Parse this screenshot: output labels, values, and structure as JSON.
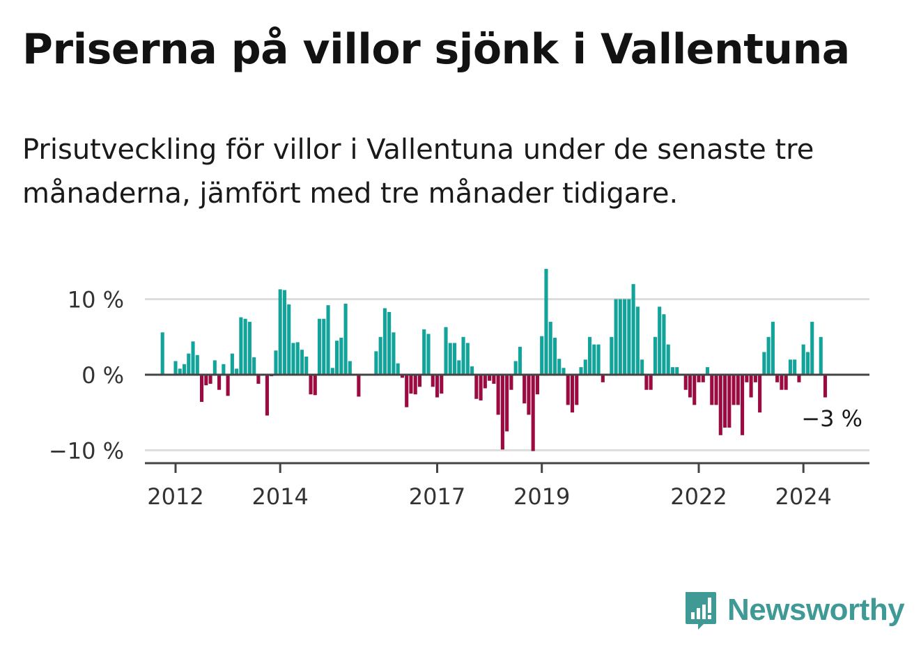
{
  "title": "Priserna på villor sjönk i Vallentuna",
  "subtitle": "Prisutveckling för villor i Vallentuna under de senaste tre månaderna, jämfört med tre månader tidigare.",
  "brand": {
    "name": "Newsworthy",
    "icon": "newsworthy-logo-icon"
  },
  "colors": {
    "positive": "#12a39a",
    "negative": "#9b0a40",
    "axis": "#444444",
    "grid": "#dddddd"
  },
  "chart_data": {
    "type": "bar",
    "title": "Priserna på villor sjönk i Vallentuna",
    "xlabel": "",
    "ylabel": "",
    "ylim": [
      -12,
      15
    ],
    "x_start": 2011.75,
    "x_step": 0.0833333,
    "y_ticks": [
      {
        "value": 10,
        "label": "10 %"
      },
      {
        "value": 0,
        "label": "0 %"
      },
      {
        "value": -10,
        "label": "−10 %"
      }
    ],
    "x_ticks": [
      {
        "value": 2012,
        "label": "2012"
      },
      {
        "value": 2014,
        "label": "2014"
      },
      {
        "value": 2017,
        "label": "2017"
      },
      {
        "value": 2019,
        "label": "2019"
      },
      {
        "value": 2022,
        "label": "2022"
      },
      {
        "value": 2024,
        "label": "2024"
      }
    ],
    "last_value_label": "−3 %",
    "values": [
      5.6,
      null,
      null,
      1.8,
      0.8,
      1.4,
      2.8,
      4.4,
      2.6,
      -3.6,
      -1.4,
      -1.2,
      1.9,
      -2.0,
      1.4,
      -2.8,
      2.8,
      0.8,
      7.6,
      7.4,
      7.0,
      2.3,
      -1.2,
      null,
      -5.4,
      -0.2,
      3.2,
      11.3,
      11.2,
      9.3,
      4.2,
      4.3,
      3.3,
      2.4,
      -2.6,
      -2.7,
      7.4,
      7.4,
      9.2,
      0.9,
      4.5,
      4.9,
      9.4,
      1.8,
      null,
      -2.9,
      null,
      null,
      null,
      3.1,
      5.0,
      8.8,
      8.3,
      5.6,
      1.5,
      -0.4,
      -4.3,
      -2.5,
      -2.6,
      -1.6,
      6.0,
      5.4,
      -1.6,
      -3.0,
      -2.5,
      6.3,
      4.2,
      4.2,
      1.9,
      5.0,
      4.2,
      1.1,
      -3.2,
      -3.4,
      -1.8,
      -0.8,
      -1.2,
      -5.3,
      -9.9,
      -7.5,
      -2.0,
      1.8,
      3.7,
      -3.8,
      -5.3,
      -10.1,
      -2.6,
      5.1,
      14.0,
      7.0,
      4.9,
      2.1,
      0.9,
      -4.0,
      -5.0,
      -4.0,
      1.0,
      2.0,
      5.0,
      4.0,
      4.0,
      -1.0,
      null,
      5.0,
      10.0,
      10.0,
      10.0,
      10.0,
      12.0,
      9.0,
      2.0,
      -2.0,
      -2.0,
      5.0,
      9.0,
      8.0,
      4.0,
      1.0,
      1.0,
      null,
      -2.0,
      -3.0,
      -4.0,
      -1.0,
      -1.0,
      1.0,
      -4.0,
      -4.0,
      -8.0,
      -7.0,
      -7.0,
      -4.0,
      -4.0,
      -8.0,
      -1.0,
      -3.0,
      -1.0,
      -5.0,
      3.0,
      5.0,
      7.0,
      -1.0,
      -2.0,
      -2.0,
      2.0,
      2.0,
      -1.0,
      4.0,
      3.0,
      7.0,
      null,
      5.0,
      -3.0
    ]
  }
}
